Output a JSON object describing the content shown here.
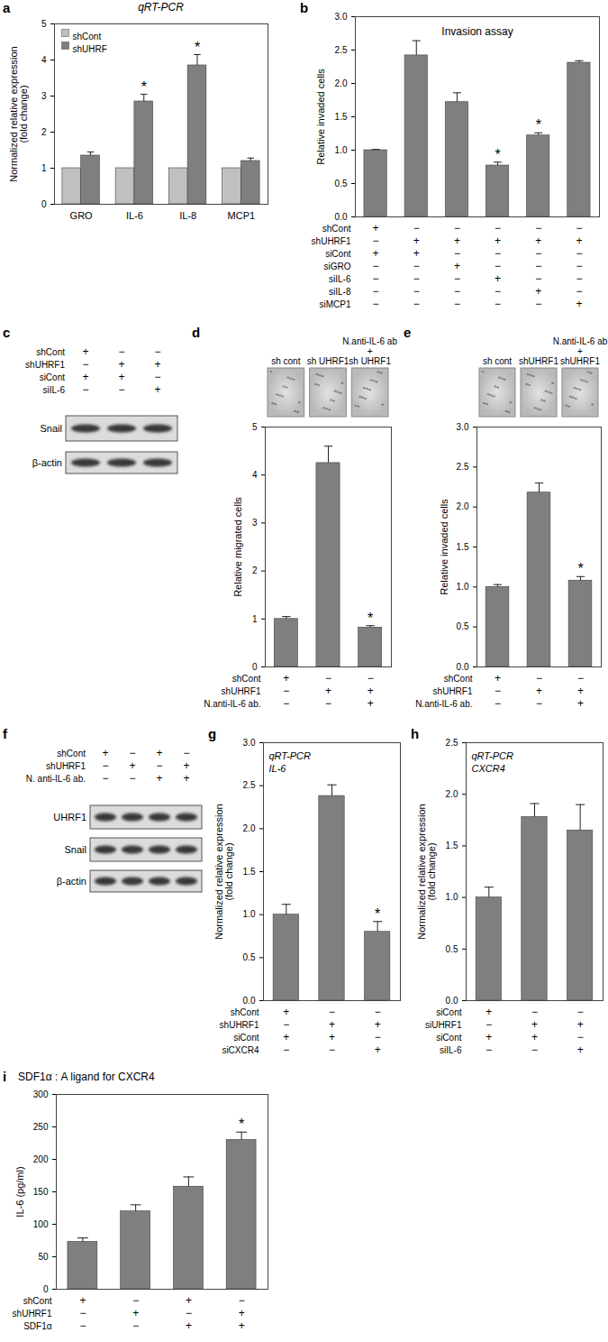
{
  "chart_data": [
    {
      "panel": "a",
      "type": "bar",
      "title": "qRT-PCR",
      "y_label": "Normalized relative expression\n(fold change)",
      "categories": [
        "GRO",
        "IL-6",
        "IL-8",
        "MCP1"
      ],
      "series": [
        {
          "name": "shCont",
          "color": "#c0c0c0",
          "values": [
            1,
            1,
            1,
            1
          ]
        },
        {
          "name": "shUHRF",
          "color": "#7f7f7f",
          "values": [
            1.35,
            2.85,
            3.85,
            1.2
          ],
          "errors": [
            0.1,
            0.2,
            0.3,
            0.08
          ]
        }
      ],
      "annotations": [
        {
          "series": "shUHRF",
          "category": "IL-6",
          "text": "*"
        },
        {
          "series": "shUHRF",
          "category": "IL-8",
          "text": "*"
        }
      ],
      "ylim": [
        0,
        5
      ],
      "yticks": [
        0,
        1,
        2,
        3,
        4,
        5
      ],
      "legend": "top-left"
    },
    {
      "panel": "b",
      "type": "bar",
      "title": "Invasion assay",
      "y_label": "Relative invaded cells",
      "categories": [
        null,
        null,
        null,
        null,
        null,
        null
      ],
      "tick_labels": "y",
      "color": "#7f7f7f",
      "values": [
        1.0,
        2.42,
        1.72,
        0.77,
        1.22,
        2.31
      ],
      "errors": [
        0.01,
        0.22,
        0.14,
        0.05,
        0.04,
        0.03
      ],
      "annotations": [
        {
          "index": 3,
          "text": "*"
        },
        {
          "index": 4,
          "text": "*"
        }
      ],
      "ylim": [
        0,
        3
      ],
      "yticks": [
        {
          "value": 0,
          "label": "0.0"
        },
        {
          "value": 0.5,
          "label": "0.5"
        },
        {
          "value": 1,
          "label": "1.0"
        },
        {
          "value": 1.5,
          "label": "1.5"
        },
        {
          "value": 2,
          "label": "2.0"
        },
        {
          "value": 2.5,
          "label": "2.5"
        },
        {
          "value": 3,
          "label": "3.0"
        }
      ],
      "conditions": [
        {
          "label": "shCont",
          "marks": [
            "+",
            "−",
            "−",
            "−",
            "−",
            "−"
          ]
        },
        {
          "label": "shUHRF1",
          "marks": [
            "−",
            "+",
            "+",
            "+",
            "+",
            "+"
          ]
        },
        {
          "label": "siCont",
          "marks": [
            "+",
            "+",
            "−",
            "−",
            "−",
            "−"
          ]
        },
        {
          "label": "siGRO",
          "marks": [
            "−",
            "−",
            "+",
            "−",
            "−",
            "−"
          ]
        },
        {
          "label": "siIL-6",
          "marks": [
            "−",
            "−",
            "−",
            "+",
            "−",
            "−"
          ]
        },
        {
          "label": "siIL-8",
          "marks": [
            "−",
            "−",
            "−",
            "−",
            "+",
            "−"
          ]
        },
        {
          "label": "siMCP1",
          "marks": [
            "−",
            "−",
            "−",
            "−",
            "−",
            "+"
          ]
        }
      ]
    },
    {
      "panel": "d",
      "type": "bar",
      "y_label": "Relative migrated cells",
      "categories": [
        null,
        null,
        null
      ],
      "tick_labels": "y",
      "color": "#7f7f7f",
      "values": [
        1.0,
        4.25,
        0.82
      ],
      "errors": [
        0.05,
        0.35,
        0.04
      ],
      "annotations": [
        {
          "index": 2,
          "text": "*"
        }
      ],
      "ylim": [
        0,
        5
      ],
      "yticks": [
        0,
        1,
        2,
        3,
        4,
        5
      ],
      "conditions": [
        {
          "label": "shCont",
          "marks": [
            "+",
            "−",
            "−"
          ]
        },
        {
          "label": "shUHRF1",
          "marks": [
            "−",
            "+",
            "+"
          ]
        },
        {
          "label": "N.anti-IL-6 ab.",
          "marks": [
            "−",
            "−",
            "+"
          ]
        }
      ]
    },
    {
      "panel": "e",
      "type": "bar",
      "y_label": "Relative invaded cells",
      "categories": [
        null,
        null,
        null
      ],
      "tick_labels": "y",
      "color": "#7f7f7f",
      "values": [
        1.0,
        2.18,
        1.08
      ],
      "errors": [
        0.03,
        0.12,
        0.05
      ],
      "annotations": [
        {
          "index": 2,
          "text": "*"
        }
      ],
      "ylim": [
        0,
        3
      ],
      "yticks": [
        {
          "value": 0,
          "label": "0.0"
        },
        {
          "value": 0.5,
          "label": "0.5"
        },
        {
          "value": 1,
          "label": "1.0"
        },
        {
          "value": 1.5,
          "label": "1.5"
        },
        {
          "value": 2,
          "label": "2.0"
        },
        {
          "value": 2.5,
          "label": "2.5"
        },
        {
          "value": 3,
          "label": "3.0"
        }
      ],
      "conditions": [
        {
          "label": "shCont",
          "marks": [
            "+",
            "−",
            "−"
          ]
        },
        {
          "label": "shUHRF1",
          "marks": [
            "−",
            "+",
            "+"
          ]
        },
        {
          "label": "N.anti-IL-6 ab.",
          "marks": [
            "−",
            "−",
            "+"
          ]
        }
      ]
    },
    {
      "panel": "g",
      "type": "bar",
      "title": "qRT-PCR",
      "subtitle": "IL-6",
      "y_label": "Normalized relative expression\n(fold change)",
      "categories": [
        null,
        null,
        null
      ],
      "tick_labels": "y",
      "color": "#7f7f7f",
      "values": [
        1.0,
        2.38,
        0.8
      ],
      "errors": [
        0.12,
        0.13,
        0.12
      ],
      "annotations": [
        {
          "index": 2,
          "text": "*"
        }
      ],
      "ylim": [
        0,
        3
      ],
      "yticks": [
        {
          "value": 0,
          "label": "0.0"
        },
        {
          "value": 0.5,
          "label": "0.5"
        },
        {
          "value": 1,
          "label": "1.0"
        },
        {
          "value": 1.5,
          "label": "1.5"
        },
        {
          "value": 2,
          "label": "2.0"
        },
        {
          "value": 2.5,
          "label": "2.5"
        },
        {
          "value": 3,
          "label": "3.0"
        }
      ],
      "conditions": [
        {
          "label": "shCont",
          "marks": [
            "+",
            "−",
            "−"
          ]
        },
        {
          "label": "shUHRF1",
          "marks": [
            "−",
            "+",
            "+"
          ]
        },
        {
          "label": "siCont",
          "marks": [
            "+",
            "+",
            "−"
          ]
        },
        {
          "label": "siCXCR4",
          "marks": [
            "−",
            "−",
            "+"
          ]
        }
      ]
    },
    {
      "panel": "h",
      "type": "bar",
      "title": "qRT-PCR",
      "subtitle": "CXCR4",
      "y_label": "Normalized relative expression\n(fold change)",
      "categories": [
        null,
        null,
        null
      ],
      "tick_labels": "y",
      "color": "#7f7f7f",
      "values": [
        1.0,
        1.78,
        1.65
      ],
      "errors": [
        0.1,
        0.13,
        0.25
      ],
      "ylim": [
        0,
        2.5
      ],
      "yticks": [
        {
          "value": 0,
          "label": "0.0"
        },
        {
          "value": 0.5,
          "label": "0.5"
        },
        {
          "value": 1,
          "label": "1.0"
        },
        {
          "value": 1.5,
          "label": "1.5"
        },
        {
          "value": 2,
          "label": "2.0"
        },
        {
          "value": 2.5,
          "label": "2.5"
        }
      ],
      "conditions": [
        {
          "label": "siCont",
          "marks": [
            "+",
            "−",
            "−"
          ]
        },
        {
          "label": "siUHRF1",
          "marks": [
            "−",
            "+",
            "+"
          ]
        },
        {
          "label": "siCont",
          "marks": [
            "+",
            "+",
            "−"
          ]
        },
        {
          "label": "siIL-6",
          "marks": [
            "−",
            "−",
            "+"
          ]
        }
      ]
    },
    {
      "panel": "i",
      "type": "bar",
      "title": "SDF1α : A ligand for CXCR4",
      "y_label": "IL-6 (pg/ml)",
      "categories": [
        null,
        null,
        null,
        null
      ],
      "tick_labels": "y",
      "color": "#7f7f7f",
      "values": [
        73,
        120,
        158,
        230
      ],
      "errors": [
        6,
        10,
        15,
        12
      ],
      "annotations": [
        {
          "index": 3,
          "text": "*"
        }
      ],
      "ylim": [
        0,
        300
      ],
      "yticks": [
        0,
        50,
        100,
        150,
        200,
        250,
        300
      ],
      "conditions": [
        {
          "label": "shCont",
          "marks": [
            "+",
            "−",
            "+",
            "−"
          ]
        },
        {
          "label": "shUHRF1",
          "marks": [
            "−",
            "+",
            "−",
            "+"
          ]
        },
        {
          "label": "SDF1α",
          "marks": [
            "−",
            "−",
            "+",
            "+"
          ]
        }
      ]
    }
  ],
  "blots": [
    {
      "panel": "c",
      "rows": [
        "Snail",
        "β-actin"
      ],
      "conditions": [
        {
          "label": "shCont",
          "marks": [
            "+",
            "−",
            "−"
          ]
        },
        {
          "label": "shUHRF1",
          "marks": [
            "−",
            "+",
            "+"
          ]
        },
        {
          "label": "siCont",
          "marks": [
            "+",
            "+",
            "−"
          ]
        },
        {
          "label": "siIL-6",
          "marks": [
            "−",
            "−",
            "+"
          ]
        }
      ]
    },
    {
      "panel": "f",
      "rows": [
        "UHRF1",
        "Snail",
        "β-actin"
      ],
      "conditions": [
        {
          "label": "shCont",
          "marks": [
            "+",
            "−",
            "+",
            "−"
          ]
        },
        {
          "label": "shUHRF1",
          "marks": [
            "−",
            "+",
            "−",
            "+"
          ]
        },
        {
          "label": "N. anti-IL-6 ab.",
          "marks": [
            "−",
            "−",
            "+",
            "+"
          ]
        }
      ]
    }
  ],
  "micrographs": [
    {
      "panel": "d",
      "labels": [
        "sh cont",
        "sh UHRF1",
        "N.anti-IL-6 ab\n+\nsh UHRF1"
      ]
    },
    {
      "panel": "e",
      "labels": [
        "sh cont",
        "shUHRF1",
        "N.anti-IL-6 ab\n+\nshUHRF1"
      ]
    }
  ]
}
